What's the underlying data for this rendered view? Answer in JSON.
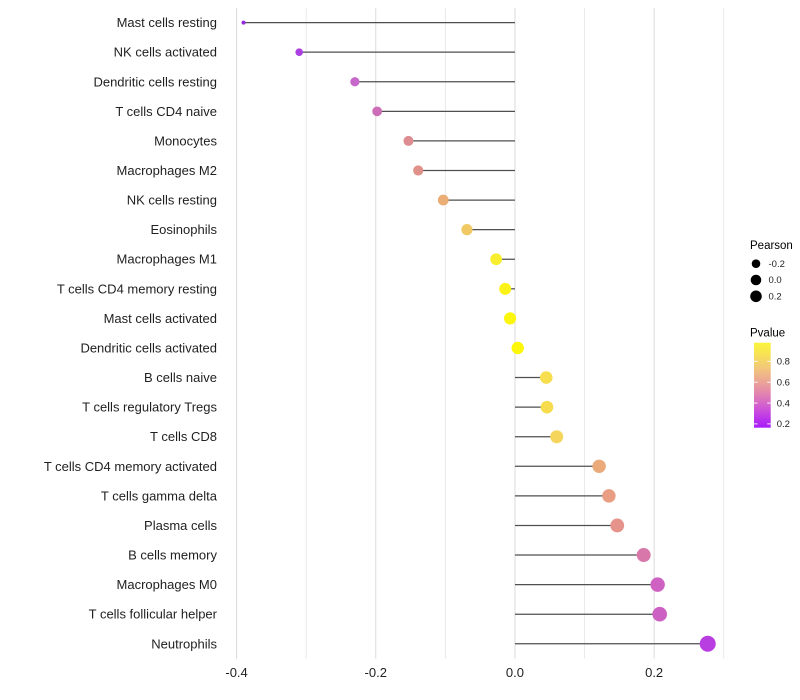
{
  "chart_data": {
    "type": "scatter",
    "subtype": "lollipop",
    "title": "",
    "xlabel": "",
    "ylabel": "",
    "xlim": [
      -0.408,
      0.309
    ],
    "grid": true,
    "gridline_values": [
      -0.4,
      -0.3,
      -0.2,
      -0.1,
      0.0,
      0.1,
      0.2,
      0.3
    ],
    "major_tick_values": [
      -0.4,
      -0.2,
      0.0,
      0.2
    ],
    "x_tick_labels": [
      "-0.4",
      "-0.2",
      "0.0",
      "0.2"
    ],
    "baseline_x": 0.0,
    "categories": [
      "Mast cells resting",
      "NK cells activated",
      "Dendritic cells resting",
      "T cells CD4 naive",
      "Monocytes",
      "Macrophages M2",
      "NK cells resting",
      "Eosinophils",
      "Macrophages M1",
      "T cells CD4 memory resting",
      "Mast cells activated",
      "Dendritic cells activated",
      "B cells naive",
      "T cells regulatory  Tregs",
      "T cells CD8",
      "T cells CD4 memory activated",
      "T cells gamma delta",
      "Plasma cells",
      "B cells memory",
      "Macrophages M0",
      "T cells follicular helper",
      "Neutrophils"
    ],
    "series": [
      {
        "name": "Pearson",
        "values": [
          -0.39,
          -0.31,
          -0.23,
          -0.198,
          -0.153,
          -0.139,
          -0.103,
          -0.069,
          -0.027,
          -0.014,
          -0.007,
          0.004,
          0.045,
          0.046,
          0.06,
          0.121,
          0.135,
          0.147,
          0.185,
          0.205,
          0.208,
          0.277
        ]
      }
    ],
    "point_colors": [
      "#942BE0",
      "#AC3FE0",
      "#C767CB",
      "#CC6EB7",
      "#DD8C92",
      "#E09189",
      "#EAAD76",
      "#F1C964",
      "#F9EE2E",
      "#FBF318",
      "#FCF60E",
      "#FDF80A",
      "#F7DE4E",
      "#F7DC4D",
      "#F5D55C",
      "#EAAA79",
      "#E99D82",
      "#E6938C",
      "#D877A9",
      "#CE61C1",
      "#CD60C3",
      "#B93EE2"
    ],
    "point_radii": [
      2.0,
      3.8,
      4.6,
      4.9,
      5.0,
      5.1,
      5.4,
      5.6,
      5.9,
      6.0,
      6.1,
      6.2,
      6.3,
      6.3,
      6.5,
      6.7,
      6.7,
      6.9,
      7.0,
      7.2,
      7.3,
      8.0
    ],
    "stem_color": "#4F4F4F",
    "major_grid_color": "#DBDBDB",
    "minor_grid_color": "#E9E9E9",
    "axis_text_color": "#1F1F1F",
    "legend_position": "right",
    "legend_size": {
      "title": "Pearson",
      "dot_color": "#000000",
      "entries": [
        {
          "label": "-0.2",
          "r": 4.3
        },
        {
          "label": "0.0",
          "r": 5.3
        },
        {
          "label": "0.2",
          "r": 5.8
        }
      ]
    },
    "legend_color": {
      "title": "Pvalue",
      "gradient_stops": [
        {
          "offset": 0.0,
          "color": "#FBF53B"
        },
        {
          "offset": 0.15,
          "color": "#F7E058"
        },
        {
          "offset": 0.3,
          "color": "#F2C67B"
        },
        {
          "offset": 0.45,
          "color": "#ECA694"
        },
        {
          "offset": 0.58,
          "color": "#E388AC"
        },
        {
          "offset": 0.7,
          "color": "#D76AC6"
        },
        {
          "offset": 0.8,
          "color": "#CA4EDB"
        },
        {
          "offset": 0.9,
          "color": "#B932EC"
        },
        {
          "offset": 1.0,
          "color": "#A81CF9"
        }
      ],
      "ticks": [
        {
          "label": "0.8",
          "pos": 0.22
        },
        {
          "label": "0.6",
          "pos": 0.465
        },
        {
          "label": "0.4",
          "pos": 0.71
        },
        {
          "label": "0.2",
          "pos": 0.955
        }
      ]
    }
  }
}
